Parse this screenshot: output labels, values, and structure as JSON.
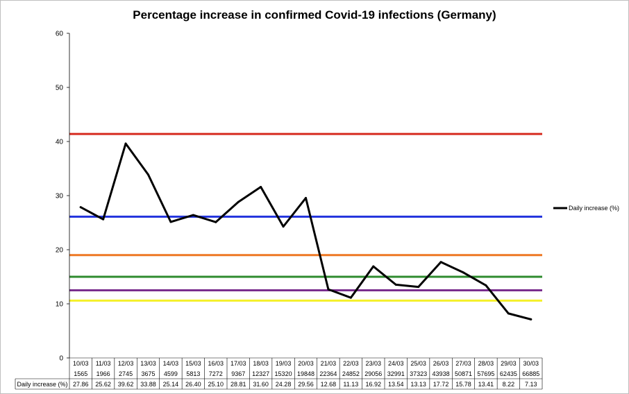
{
  "chart_data": {
    "type": "line",
    "title": "Percentage increase in confirmed Covid-19 infections (Germany)",
    "xlabel": "",
    "ylabel": "",
    "ylim": [
      0,
      60
    ],
    "y_ticks": [
      0,
      10,
      20,
      30,
      40,
      50,
      60
    ],
    "categories": [
      "10/03",
      "11/03",
      "12/03",
      "13/03",
      "14/03",
      "15/03",
      "16/03",
      "17/03",
      "18/03",
      "19/03",
      "20/03",
      "21/03",
      "22/03",
      "23/03",
      "24/03",
      "25/03",
      "26/03",
      "27/03",
      "28/03",
      "29/03",
      "30/03"
    ],
    "confirmed_cases": [
      "1565",
      "1966",
      "2745",
      "3675",
      "4599",
      "5813",
      "7272",
      "9367",
      "12327",
      "15320",
      "19848",
      "22364",
      "24852",
      "29056",
      "32991",
      "37323",
      "43938",
      "50871",
      "57695",
      "62435",
      "66885"
    ],
    "series": [
      {
        "name": "Daily increase (%)",
        "color": "#000000",
        "values": [
          27.86,
          25.62,
          39.62,
          33.88,
          25.14,
          26.4,
          25.1,
          28.81,
          31.6,
          24.28,
          29.56,
          12.68,
          11.13,
          16.92,
          13.54,
          13.13,
          17.72,
          15.78,
          13.41,
          8.22,
          7.13
        ],
        "labels": [
          "27.86",
          "25.62",
          "39.62",
          "33.88",
          "25.14",
          "26.40",
          "25.10",
          "28.81",
          "31.60",
          "24.28",
          "29.56",
          "12.68",
          "11.13",
          "16.92",
          "13.54",
          "13.13",
          "17.72",
          "15.78",
          "13.41",
          "8.22",
          "7.13"
        ]
      }
    ],
    "reference_lines": [
      {
        "value": 41.4,
        "color": "#d62b1f"
      },
      {
        "value": 26.1,
        "color": "#2233dd"
      },
      {
        "value": 19.0,
        "color": "#ee7722"
      },
      {
        "value": 15.0,
        "color": "#2e8b2e"
      },
      {
        "value": 12.5,
        "color": "#7a2e8e"
      },
      {
        "value": 10.6,
        "color": "#f5f02a"
      }
    ],
    "grid": false,
    "legend": {
      "position": "right",
      "entries": [
        "Daily increase (%)"
      ]
    }
  }
}
